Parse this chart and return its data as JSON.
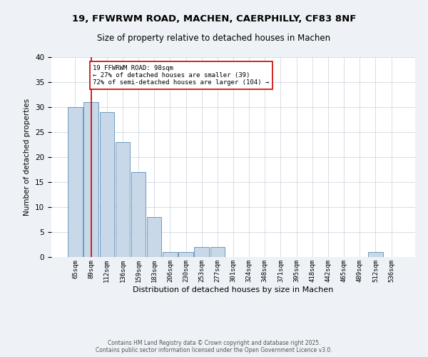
{
  "title_line1": "19, FFWRWM ROAD, MACHEN, CAERPHILLY, CF83 8NF",
  "title_line2": "Size of property relative to detached houses in Machen",
  "xlabel": "Distribution of detached houses by size in Machen",
  "ylabel": "Number of detached properties",
  "bar_labels": [
    "65sqm",
    "89sqm",
    "112sqm",
    "136sqm",
    "159sqm",
    "183sqm",
    "206sqm",
    "230sqm",
    "253sqm",
    "277sqm",
    "301sqm",
    "324sqm",
    "348sqm",
    "371sqm",
    "395sqm",
    "418sqm",
    "442sqm",
    "465sqm",
    "489sqm",
    "512sqm",
    "536sqm"
  ],
  "bar_values": [
    30,
    31,
    29,
    23,
    17,
    8,
    1,
    1,
    2,
    2,
    0,
    0,
    0,
    0,
    0,
    0,
    0,
    0,
    0,
    1,
    0
  ],
  "bar_color": "#c8d8e8",
  "bar_edge_color": "#5b8db8",
  "vline_x": 1,
  "vline_color": "#cc0000",
  "annotation_text": "19 FFWRWM ROAD: 98sqm\n← 27% of detached houses are smaller (39)\n72% of semi-detached houses are larger (104) →",
  "annotation_box_color": "#ffffff",
  "annotation_box_edge": "#cc0000",
  "ylim": [
    0,
    40
  ],
  "yticks": [
    0,
    5,
    10,
    15,
    20,
    25,
    30,
    35,
    40
  ],
  "footnote": "Contains HM Land Registry data © Crown copyright and database right 2025.\nContains public sector information licensed under the Open Government Licence v3.0.",
  "bg_color": "#eef2f7",
  "plot_bg_color": "#ffffff",
  "grid_color": "#c8d0dc"
}
